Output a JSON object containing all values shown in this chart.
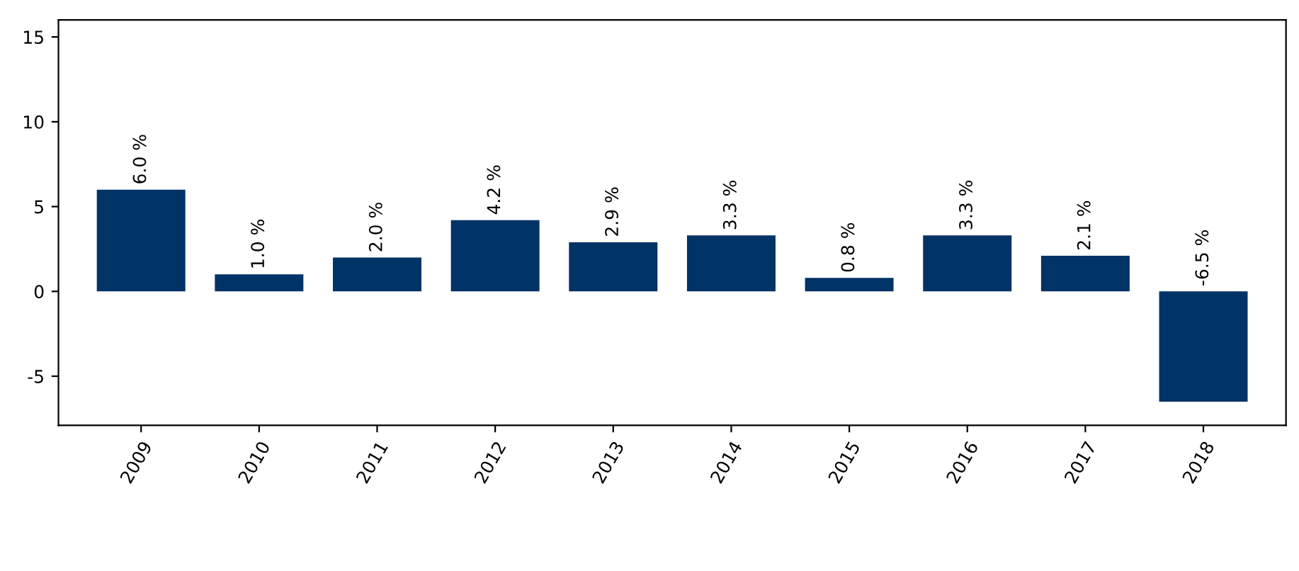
{
  "chart_data": {
    "type": "bar",
    "categories": [
      "2009",
      "2010",
      "2011",
      "2012",
      "2013",
      "2014",
      "2015",
      "2016",
      "2017",
      "2018"
    ],
    "values": [
      6.0,
      1.0,
      2.0,
      4.2,
      2.9,
      3.3,
      0.8,
      3.3,
      2.1,
      -6.5
    ],
    "value_labels": [
      "6.0 %",
      "1.0 %",
      "2.0 %",
      "4.2 %",
      "2.9 %",
      "3.3 %",
      "0.8 %",
      "3.3 %",
      "2.1 %",
      "-6.5 %"
    ],
    "color": "#003366",
    "ylim": [
      -7.9,
      16
    ],
    "yticks": [
      -5,
      0,
      5,
      10,
      15
    ],
    "grid": false,
    "legend": false
  }
}
